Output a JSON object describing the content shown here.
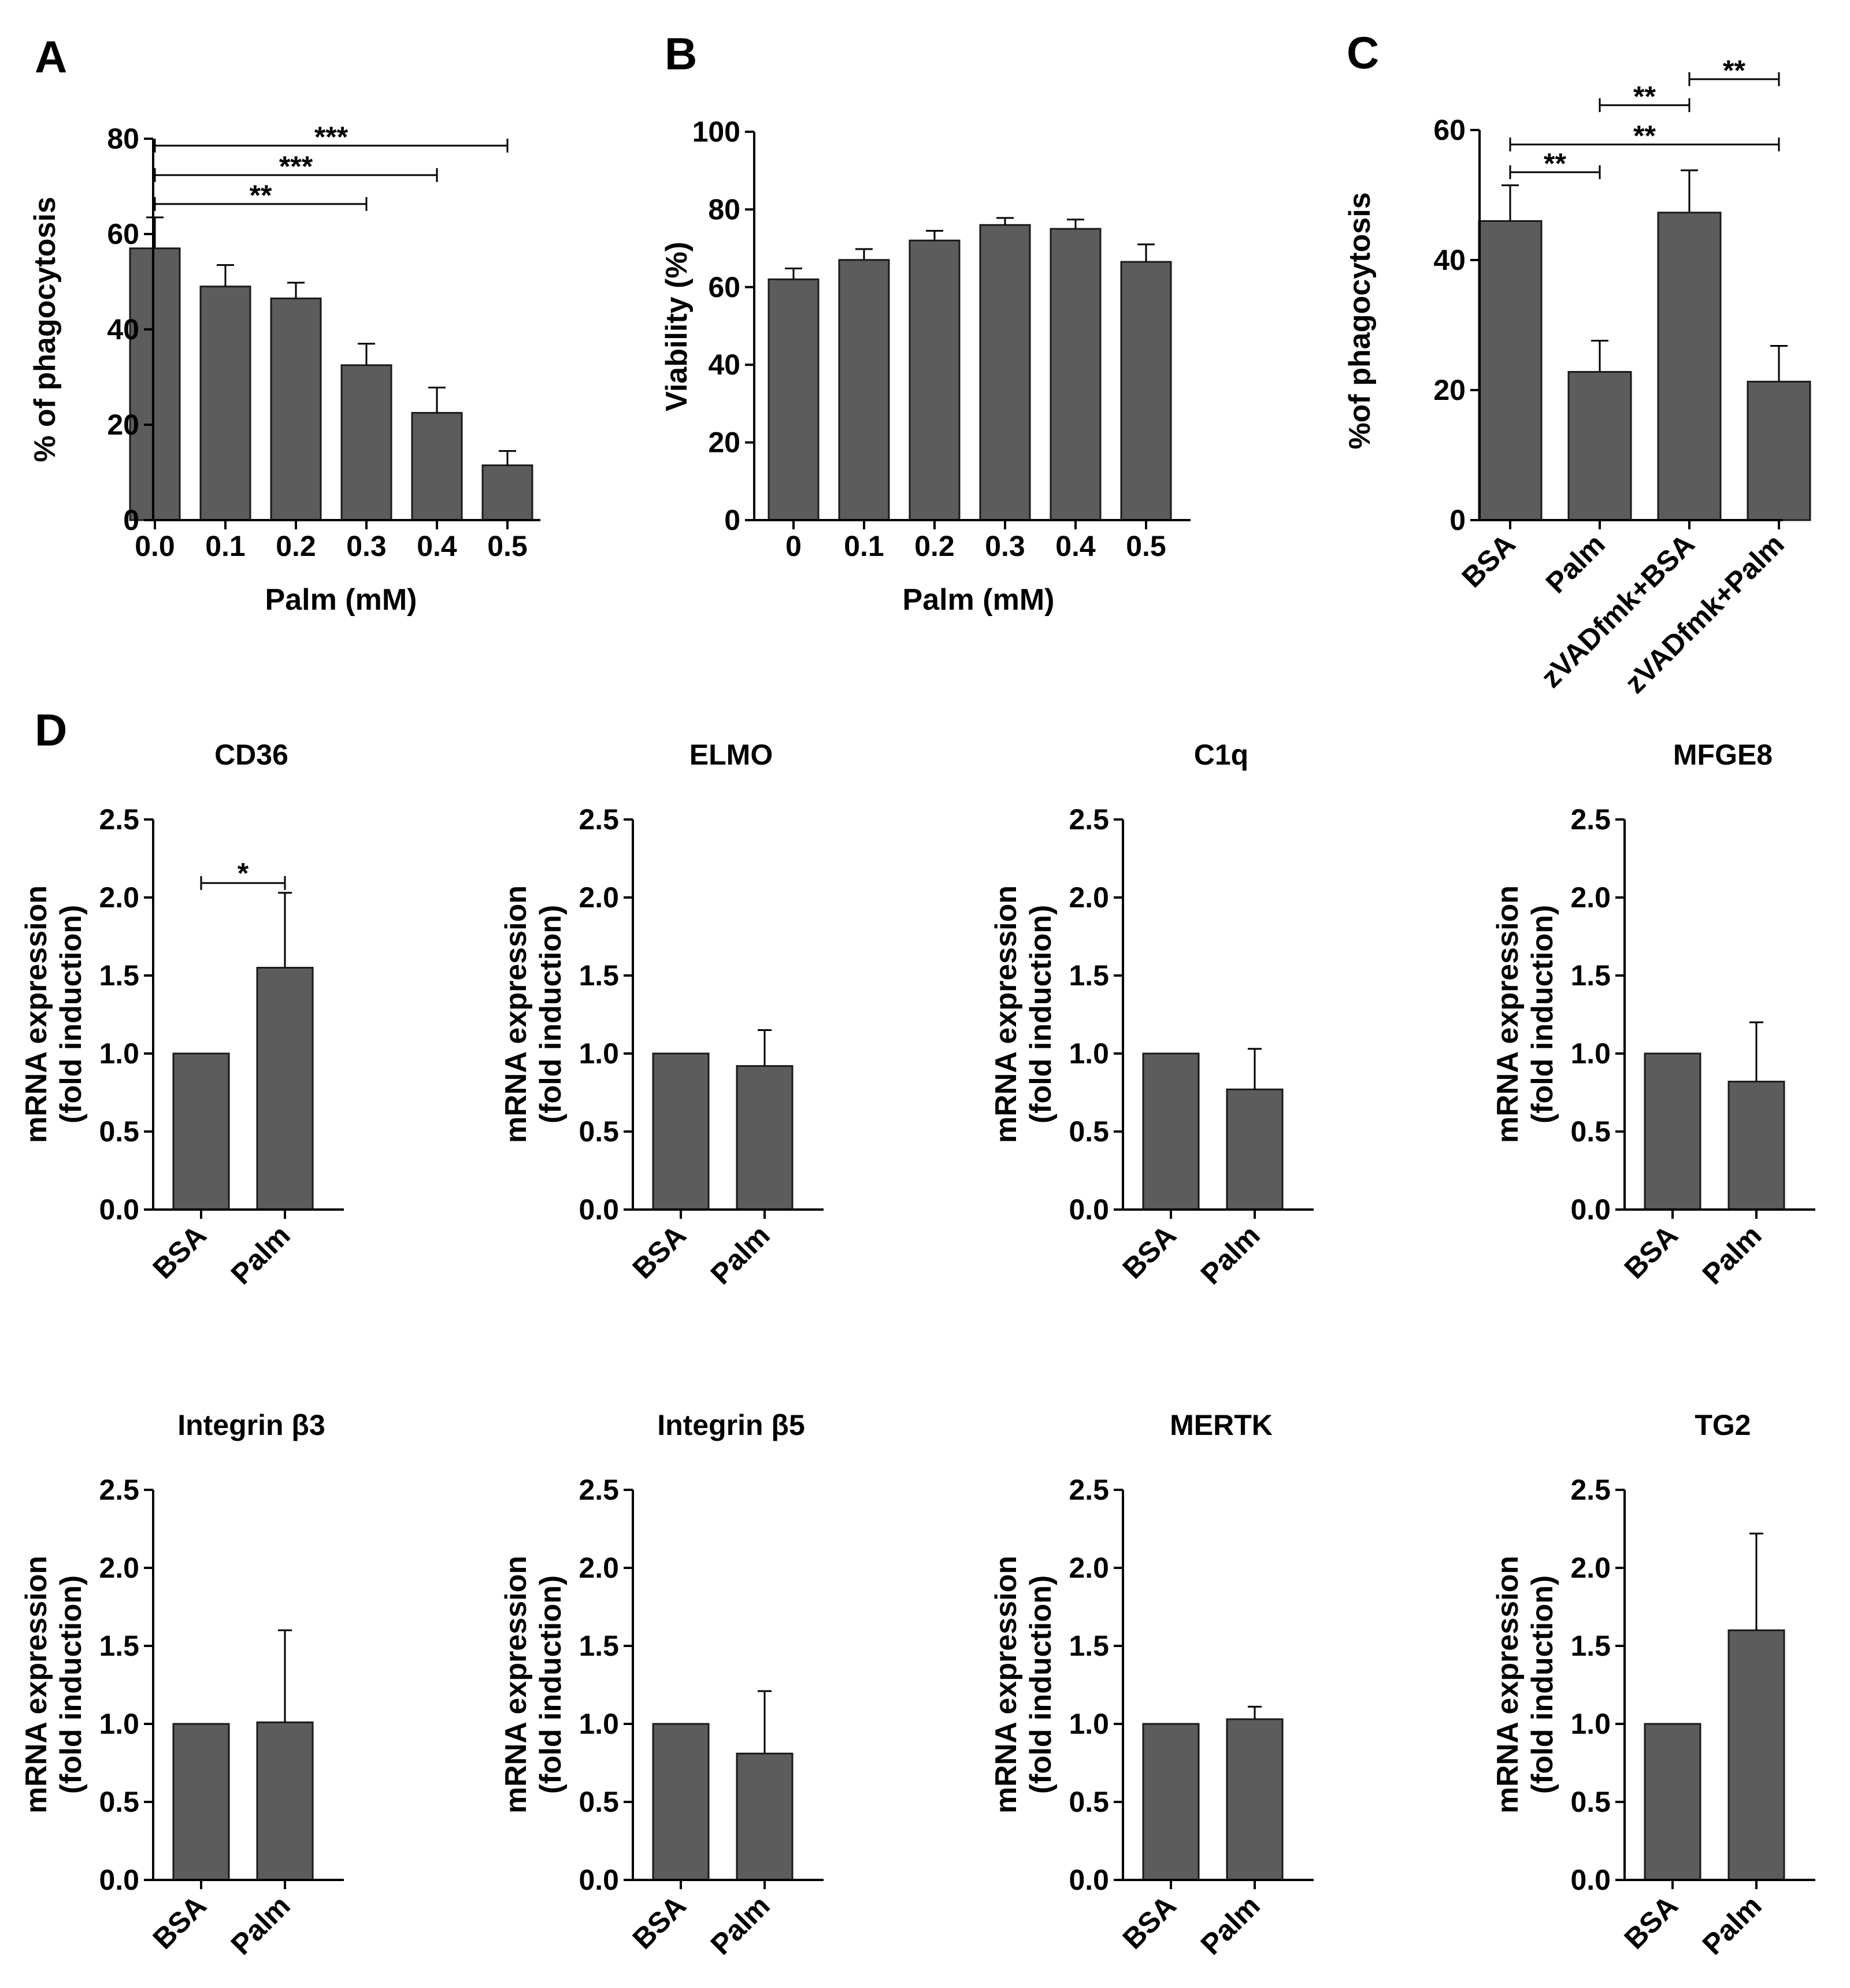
{
  "colors": {
    "bar": "#5c5c5c",
    "axis": "#000000",
    "sig": "#000000"
  },
  "panels": {
    "a": "A",
    "b": "B",
    "c": "C",
    "d": "D"
  },
  "chart_data": [
    {
      "id": "A",
      "type": "bar",
      "categories": [
        "0.0",
        "0.1",
        "0.2",
        "0.3",
        "0.4",
        "0.5"
      ],
      "values": [
        57,
        49,
        46.5,
        32.5,
        22.5,
        11.5
      ],
      "errors": [
        6.5,
        4.5,
        3.3,
        4.5,
        5.3,
        3.0
      ],
      "xlabel": "Palm (mM)",
      "ylabel": "% of phagocytosis",
      "ylim": [
        0,
        80
      ],
      "yticks": [
        "0",
        "20",
        "40",
        "60",
        "80"
      ],
      "significance": [
        {
          "from": 0,
          "to": 3,
          "label": "**"
        },
        {
          "from": 0,
          "to": 4,
          "label": "***"
        },
        {
          "from": 0,
          "to": 5,
          "label": "***"
        }
      ]
    },
    {
      "id": "B",
      "type": "bar",
      "categories": [
        "0",
        "0.1",
        "0.2",
        "0.3",
        "0.4",
        "0.5"
      ],
      "values": [
        62,
        67,
        72,
        76,
        75,
        66.5
      ],
      "errors": [
        2.8,
        2.8,
        2.5,
        1.8,
        2.4,
        4.5
      ],
      "xlabel": "Palm (mM)",
      "ylabel": "Viability (%)",
      "ylim": [
        0,
        100
      ],
      "yticks": [
        "0",
        "20",
        "40",
        "60",
        "80",
        "100"
      ],
      "significance": []
    },
    {
      "id": "C",
      "type": "bar",
      "categories": [
        "BSA",
        "Palm",
        "zVADfmk+BSA",
        "zVADfmk+Palm"
      ],
      "values": [
        46,
        22.8,
        47.3,
        21.3
      ],
      "errors": [
        5.5,
        4.8,
        6.5,
        5.5
      ],
      "xlabel": "",
      "ylabel": "%of phagocytosis",
      "ylim": [
        0,
        60
      ],
      "yticks": [
        "0",
        "20",
        "40",
        "60"
      ],
      "significance": [
        {
          "from": 0,
          "to": 1,
          "label": "**"
        },
        {
          "from": 0,
          "to": 3,
          "label": "**"
        },
        {
          "from": 1,
          "to": 2,
          "label": "**"
        },
        {
          "from": 2,
          "to": 3,
          "label": "**"
        }
      ]
    },
    {
      "id": "D-CD36",
      "type": "bar",
      "title": "CD36",
      "categories": [
        "BSA",
        "Palm"
      ],
      "values": [
        1.0,
        1.55
      ],
      "errors": [
        0,
        0.48
      ],
      "ylabel": [
        "mRNA expression",
        "(fold induction)"
      ],
      "ylim": [
        0,
        2.5
      ],
      "yticks": [
        "0.0",
        "0.5",
        "1.0",
        "1.5",
        "2.0",
        "2.5"
      ],
      "significance": [
        {
          "from": 0,
          "to": 1,
          "label": "*"
        }
      ]
    },
    {
      "id": "D-ELMO",
      "type": "bar",
      "title": "ELMO",
      "categories": [
        "BSA",
        "Palm"
      ],
      "values": [
        1.0,
        0.92
      ],
      "errors": [
        0,
        0.23
      ],
      "ylabel": [
        "mRNA expression",
        "(fold induction)"
      ],
      "ylim": [
        0,
        2.5
      ],
      "yticks": [
        "0.0",
        "0.5",
        "1.0",
        "1.5",
        "2.0",
        "2.5"
      ],
      "significance": []
    },
    {
      "id": "D-C1q",
      "type": "bar",
      "title": "C1q",
      "categories": [
        "BSA",
        "Palm"
      ],
      "values": [
        1.0,
        0.77
      ],
      "errors": [
        0,
        0.26
      ],
      "ylabel": [
        "mRNA expression",
        "(fold induction)"
      ],
      "ylim": [
        0,
        2.5
      ],
      "yticks": [
        "0.0",
        "0.5",
        "1.0",
        "1.5",
        "2.0",
        "2.5"
      ],
      "significance": []
    },
    {
      "id": "D-MFGE8",
      "type": "bar",
      "title": "MFGE8",
      "categories": [
        "BSA",
        "Palm"
      ],
      "values": [
        1.0,
        0.82
      ],
      "errors": [
        0,
        0.38
      ],
      "ylabel": [
        "mRNA expression",
        "(fold induction)"
      ],
      "ylim": [
        0,
        2.5
      ],
      "yticks": [
        "0.0",
        "0.5",
        "1.0",
        "1.5",
        "2.0",
        "2.5"
      ],
      "significance": []
    },
    {
      "id": "D-ITGB3",
      "type": "bar",
      "title": "Integrin β3",
      "categories": [
        "BSA",
        "Palm"
      ],
      "values": [
        1.0,
        1.01
      ],
      "errors": [
        0,
        0.59
      ],
      "ylabel": [
        "mRNA expression",
        "(fold induction)"
      ],
      "ylim": [
        0,
        2.5
      ],
      "yticks": [
        "0.0",
        "0.5",
        "1.0",
        "1.5",
        "2.0",
        "2.5"
      ],
      "significance": []
    },
    {
      "id": "D-ITGB5",
      "type": "bar",
      "title": "Integrin β5",
      "categories": [
        "BSA",
        "Palm"
      ],
      "values": [
        1.0,
        0.81
      ],
      "errors": [
        0,
        0.4
      ],
      "ylabel": [
        "mRNA expression",
        "(fold induction)"
      ],
      "ylim": [
        0,
        2.5
      ],
      "yticks": [
        "0.0",
        "0.5",
        "1.0",
        "1.5",
        "2.0",
        "2.5"
      ],
      "significance": []
    },
    {
      "id": "D-MERTK",
      "type": "bar",
      "title": "MERTK",
      "categories": [
        "BSA",
        "Palm"
      ],
      "values": [
        1.0,
        1.03
      ],
      "errors": [
        0,
        0.08
      ],
      "ylabel": [
        "mRNA expression",
        "(fold induction)"
      ],
      "ylim": [
        0,
        2.5
      ],
      "yticks": [
        "0.0",
        "0.5",
        "1.0",
        "1.5",
        "2.0",
        "2.5"
      ],
      "significance": []
    },
    {
      "id": "D-TG2",
      "type": "bar",
      "title": "TG2",
      "categories": [
        "BSA",
        "Palm"
      ],
      "values": [
        1.0,
        1.6
      ],
      "errors": [
        0,
        0.62
      ],
      "ylabel": [
        "mRNA expression",
        "(fold induction)"
      ],
      "ylim": [
        0,
        2.5
      ],
      "yticks": [
        "0.0",
        "0.5",
        "1.0",
        "1.5",
        "2.0",
        "2.5"
      ],
      "significance": []
    }
  ]
}
